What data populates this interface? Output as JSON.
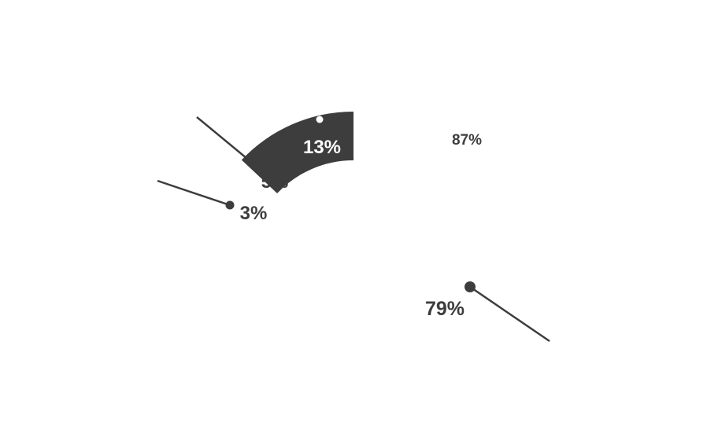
{
  "chart_data": {
    "type": "pie",
    "title": "",
    "outer_ring": {
      "slices": [
        {
          "label": "87%",
          "value": 87,
          "fill": "#ffffff"
        },
        {
          "label": "13%",
          "value": 13,
          "fill": "#3d3d3d"
        }
      ]
    },
    "inner_ring": {
      "slices": [
        {
          "label": "79%",
          "value": 79
        },
        {
          "label": "5%",
          "value": 5
        },
        {
          "label": "3%",
          "value": 3
        }
      ]
    },
    "colors": {
      "dark": "#3d3d3d",
      "background": "#ffffff"
    }
  }
}
